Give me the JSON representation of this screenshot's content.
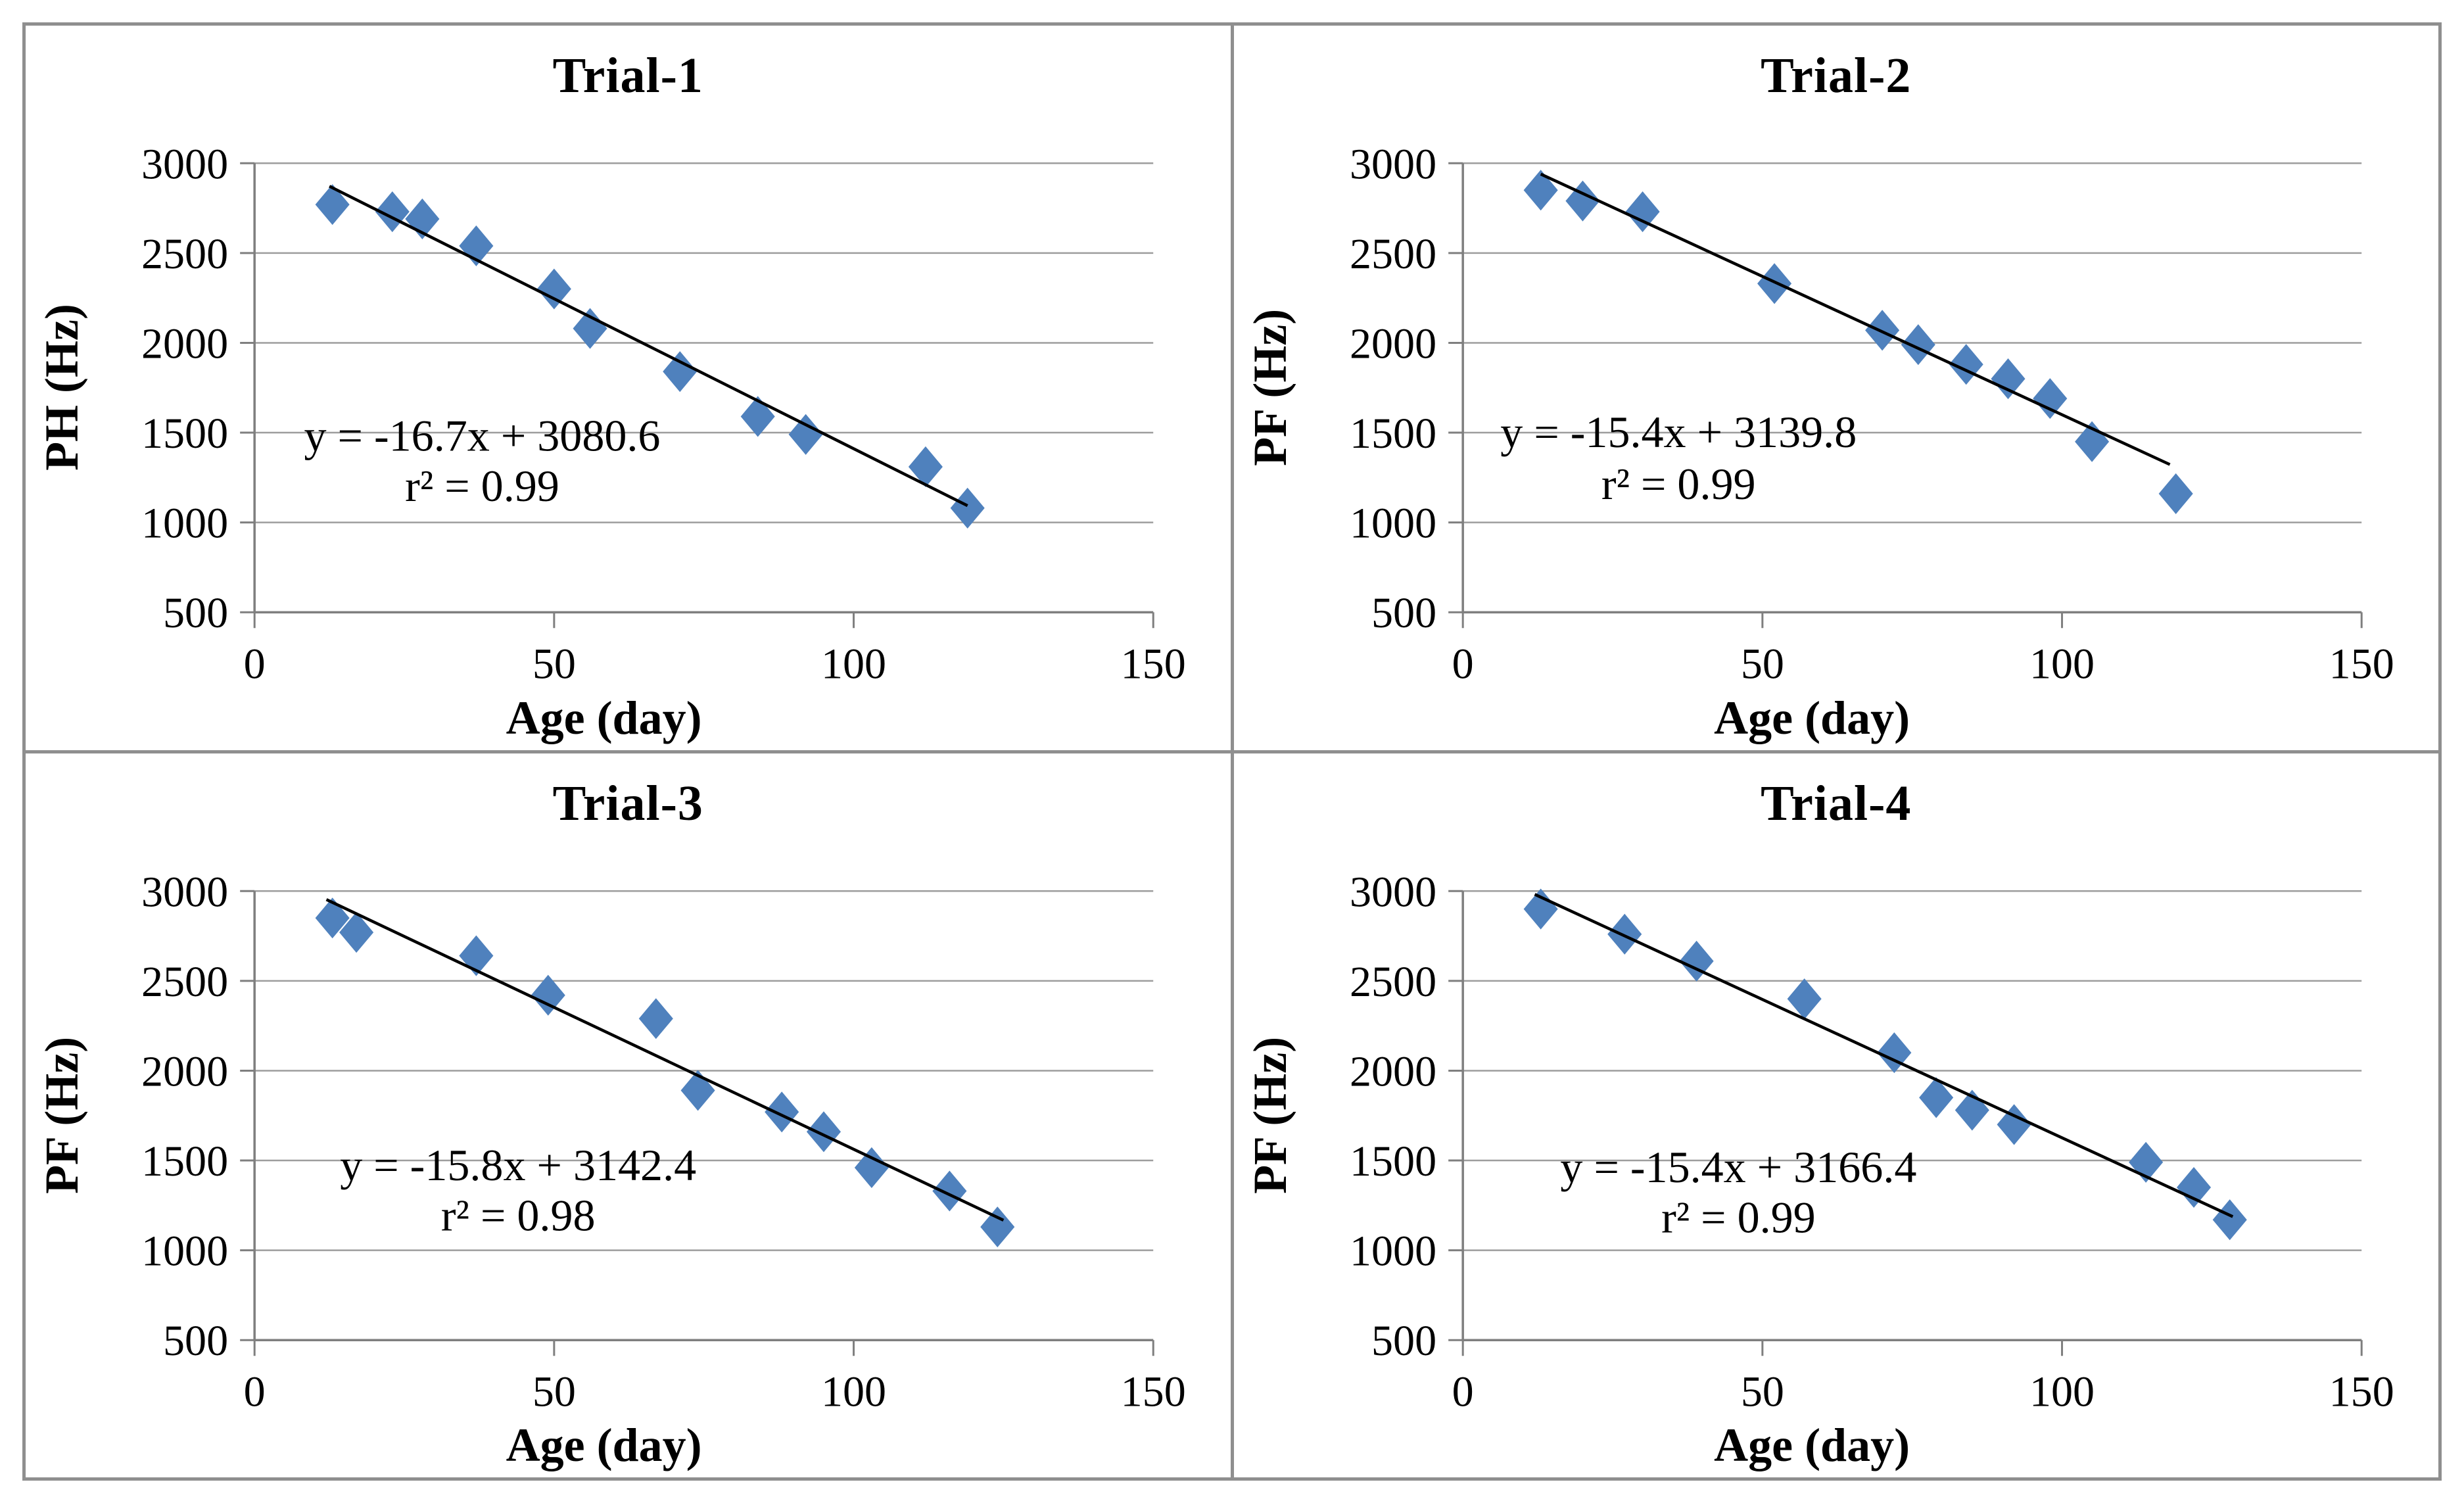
{
  "style": {
    "background": "#ffffff",
    "panel_border_color": "#8f8f8f",
    "marker_color": "#4f81bd",
    "trend_color": "#000000",
    "gridline_color": "#9d9d9d",
    "axis_color": "#7f7f7f",
    "text_color": "#000000"
  },
  "chart_data": [
    {
      "type": "scatter",
      "title": "Trial-1",
      "xlabel": "Age (day)",
      "ylabel": "PH (Hz)",
      "xlim": [
        0,
        150
      ],
      "ylim": [
        500,
        3000
      ],
      "xticks": [
        0,
        50,
        100,
        150
      ],
      "yticks": [
        500,
        1000,
        1500,
        2000,
        2500,
        3000
      ],
      "grid": true,
      "legend": "none",
      "points": [
        [
          13,
          2770
        ],
        [
          23,
          2730
        ],
        [
          28,
          2690
        ],
        [
          37,
          2540
        ],
        [
          50,
          2300
        ],
        [
          56,
          2080
        ],
        [
          71,
          1840
        ],
        [
          84,
          1590
        ],
        [
          92,
          1490
        ],
        [
          112,
          1310
        ],
        [
          119,
          1080
        ]
      ],
      "trend": {
        "equation": "y = -16.7x + 3080.6",
        "r2": "r² = 0.99",
        "slope": -16.7,
        "intercept": 3080.6,
        "x_range": [
          12.5,
          119
        ],
        "eq_xy": [
          38,
          1400
        ],
        "r2_xy": [
          38,
          1120
        ]
      }
    },
    {
      "type": "scatter",
      "title": "Trial-2",
      "xlabel": "Age (day)",
      "ylabel": "PF (Hz)",
      "xlim": [
        0,
        150
      ],
      "ylim": [
        500,
        3000
      ],
      "xticks": [
        0,
        50,
        100,
        150
      ],
      "yticks": [
        500,
        1000,
        1500,
        2000,
        2500,
        3000
      ],
      "grid": true,
      "legend": "none",
      "points": [
        [
          13,
          2850
        ],
        [
          20,
          2790
        ],
        [
          30,
          2730
        ],
        [
          52,
          2330
        ],
        [
          70,
          2070
        ],
        [
          76,
          1990
        ],
        [
          84,
          1880
        ],
        [
          91,
          1800
        ],
        [
          98,
          1690
        ],
        [
          105,
          1450
        ],
        [
          119,
          1160
        ]
      ],
      "trend": {
        "equation": "y = -15.4x + 3139.8",
        "r2": "r² = 0.99",
        "slope": -15.4,
        "intercept": 3139.8,
        "x_range": [
          13,
          118
        ],
        "eq_xy": [
          36,
          1420
        ],
        "r2_xy": [
          36,
          1130
        ]
      }
    },
    {
      "type": "scatter",
      "title": "Trial-3",
      "xlabel": "Age (day)",
      "ylabel": "PF (Hz)",
      "xlim": [
        0,
        150
      ],
      "ylim": [
        500,
        3000
      ],
      "xticks": [
        0,
        50,
        100,
        150
      ],
      "yticks": [
        500,
        1000,
        1500,
        2000,
        2500,
        3000
      ],
      "grid": true,
      "legend": "none",
      "points": [
        [
          13,
          2850
        ],
        [
          17,
          2770
        ],
        [
          37,
          2640
        ],
        [
          49,
          2420
        ],
        [
          67,
          2290
        ],
        [
          74,
          1890
        ],
        [
          88,
          1770
        ],
        [
          95,
          1660
        ],
        [
          103,
          1460
        ],
        [
          116,
          1330
        ],
        [
          124,
          1130
        ]
      ],
      "trend": {
        "equation": "y = -15.8x + 3142.4",
        "r2": "r² = 0.98",
        "slope": -15.8,
        "intercept": 3142.4,
        "x_range": [
          12,
          125
        ],
        "eq_xy": [
          44,
          1390
        ],
        "r2_xy": [
          44,
          1110
        ]
      }
    },
    {
      "type": "scatter",
      "title": "Trial-4",
      "xlabel": "Age (day)",
      "ylabel": "PF (Hz)",
      "xlim": [
        0,
        150
      ],
      "ylim": [
        500,
        3000
      ],
      "xticks": [
        0,
        50,
        100,
        150
      ],
      "yticks": [
        500,
        1000,
        1500,
        2000,
        2500,
        3000
      ],
      "grid": true,
      "legend": "none",
      "points": [
        [
          13,
          2900
        ],
        [
          27,
          2760
        ],
        [
          39,
          2610
        ],
        [
          57,
          2400
        ],
        [
          72,
          2100
        ],
        [
          79,
          1850
        ],
        [
          85,
          1780
        ],
        [
          92,
          1700
        ],
        [
          114,
          1490
        ],
        [
          122,
          1350
        ],
        [
          128,
          1170
        ]
      ],
      "trend": {
        "equation": "y = -15.4x + 3166.4",
        "r2": "r² = 0.99",
        "slope": -15.4,
        "intercept": 3166.4,
        "x_range": [
          12,
          128.5
        ],
        "eq_xy": [
          46,
          1380
        ],
        "r2_xy": [
          46,
          1100
        ]
      }
    }
  ]
}
